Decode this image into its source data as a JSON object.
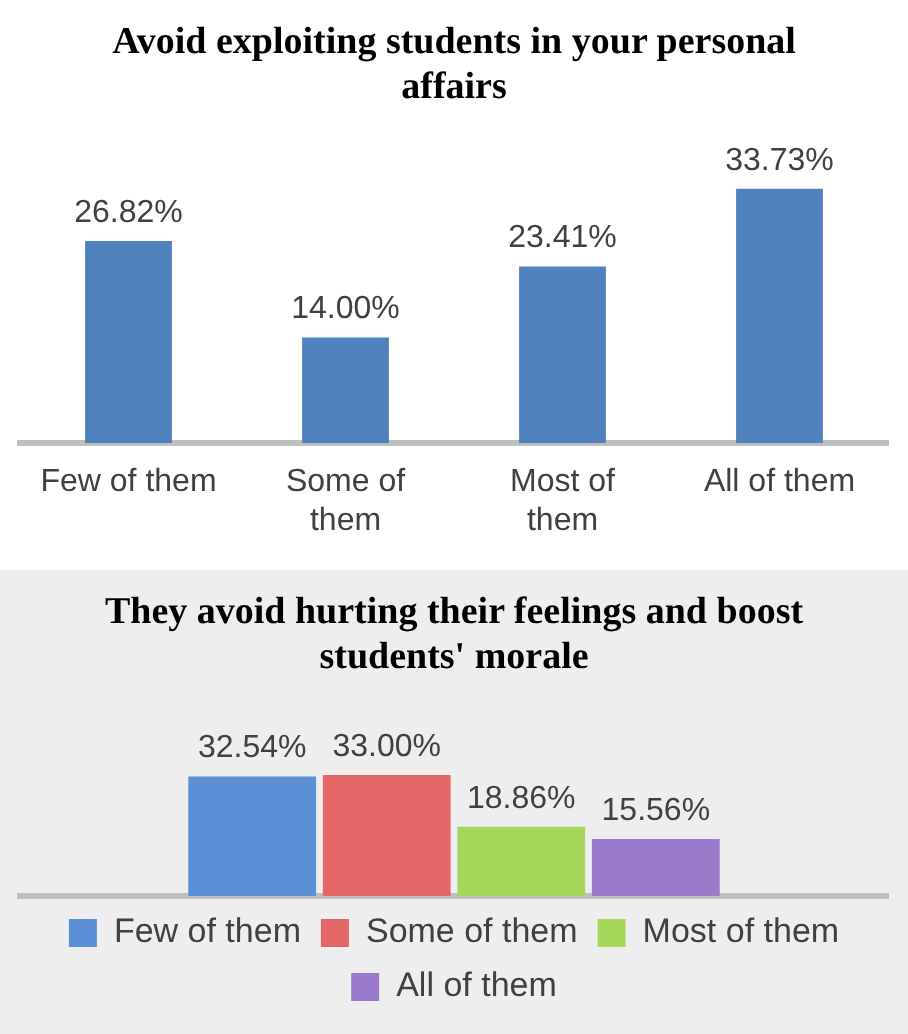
{
  "chart_data": [
    {
      "type": "bar",
      "title": "Avoid exploiting students in your personal affairs",
      "categories": [
        "Few of them",
        "Some of them",
        "Most of them",
        "All of them"
      ],
      "values": [
        26.82,
        14.0,
        23.41,
        33.73
      ],
      "value_labels": [
        "26.82%",
        "14.00%",
        "23.41%",
        "33.73%"
      ],
      "color": "#4f81bd",
      "tick_labels": "x"
    },
    {
      "type": "bar",
      "title": "They avoid hurting their feelings and boost students' morale",
      "categories": [
        null
      ],
      "series": [
        {
          "name": "Few of them",
          "color": "#5b8fd6",
          "values": [
            32.54
          ],
          "value_labels": [
            "32.54%"
          ]
        },
        {
          "name": "Some of them",
          "color": "#e46666",
          "values": [
            33.0
          ],
          "value_labels": [
            "33.00%"
          ]
        },
        {
          "name": "Most of them",
          "color": "#a6d65a",
          "values": [
            18.86
          ],
          "value_labels": [
            "18.86%"
          ]
        },
        {
          "name": "All of them",
          "color": "#9a7bc9",
          "values": [
            15.56
          ],
          "value_labels": [
            "15.56%"
          ]
        }
      ],
      "legend": "bottom",
      "tick_labels": false
    }
  ]
}
